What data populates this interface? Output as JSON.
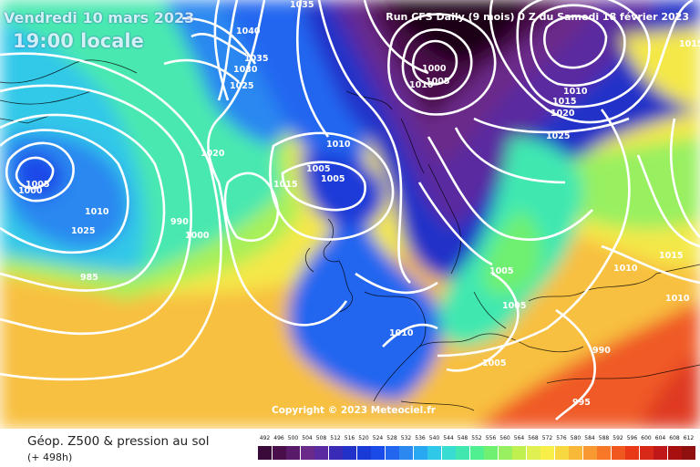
{
  "header": {
    "date": "Vendredi 10 mars 2023",
    "local_time": "19:00 locale",
    "run_info": "Run CFS Daily (9 mois) 0 Z du Samedi 18 février 2023"
  },
  "copyright": "Copyright © 2023 Meteociel.fr",
  "footer": {
    "title": "Géop. Z500 & pression au sol",
    "subtitle": "(+ 498h)"
  },
  "isobar_labels": [
    "1035",
    "1040",
    "1035",
    "1030",
    "1025",
    "1020",
    "1010",
    "1005",
    "1005",
    "1015",
    "1010",
    "1000",
    "1005",
    "1010",
    "1015",
    "1020",
    "1025",
    "1015",
    "1015",
    "1010",
    "1010",
    "1005",
    "1005",
    "1010",
    "1005",
    "990",
    "995",
    "1000",
    "1005",
    "1010",
    "1025",
    "985",
    "990",
    "1000"
  ],
  "scale": {
    "values": [
      "492",
      "496",
      "500",
      "504",
      "508",
      "512",
      "516",
      "520",
      "524",
      "528",
      "532",
      "536",
      "540",
      "544",
      "548",
      "552",
      "556",
      "560",
      "564",
      "568",
      "572",
      "576",
      "580",
      "584",
      "588",
      "592",
      "596",
      "600",
      "604",
      "608",
      "612"
    ],
    "colors": [
      "#3a0a3a",
      "#4a0f4a",
      "#5a1a6a",
      "#6a2a8a",
      "#5a2aa0",
      "#3a2ab8",
      "#2232c8",
      "#1a3ad8",
      "#1a4ae8",
      "#2266f0",
      "#2a88f0",
      "#28a8f0",
      "#30c8e8",
      "#38dcd0",
      "#40e8b0",
      "#50f090",
      "#70f070",
      "#98f060",
      "#c0f050",
      "#e0f050",
      "#f8f048",
      "#f8d840",
      "#f8b838",
      "#f89830",
      "#f87828",
      "#f05820",
      "#e83818",
      "#d82818",
      "#c01818",
      "#a81010",
      "#901010"
    ]
  }
}
